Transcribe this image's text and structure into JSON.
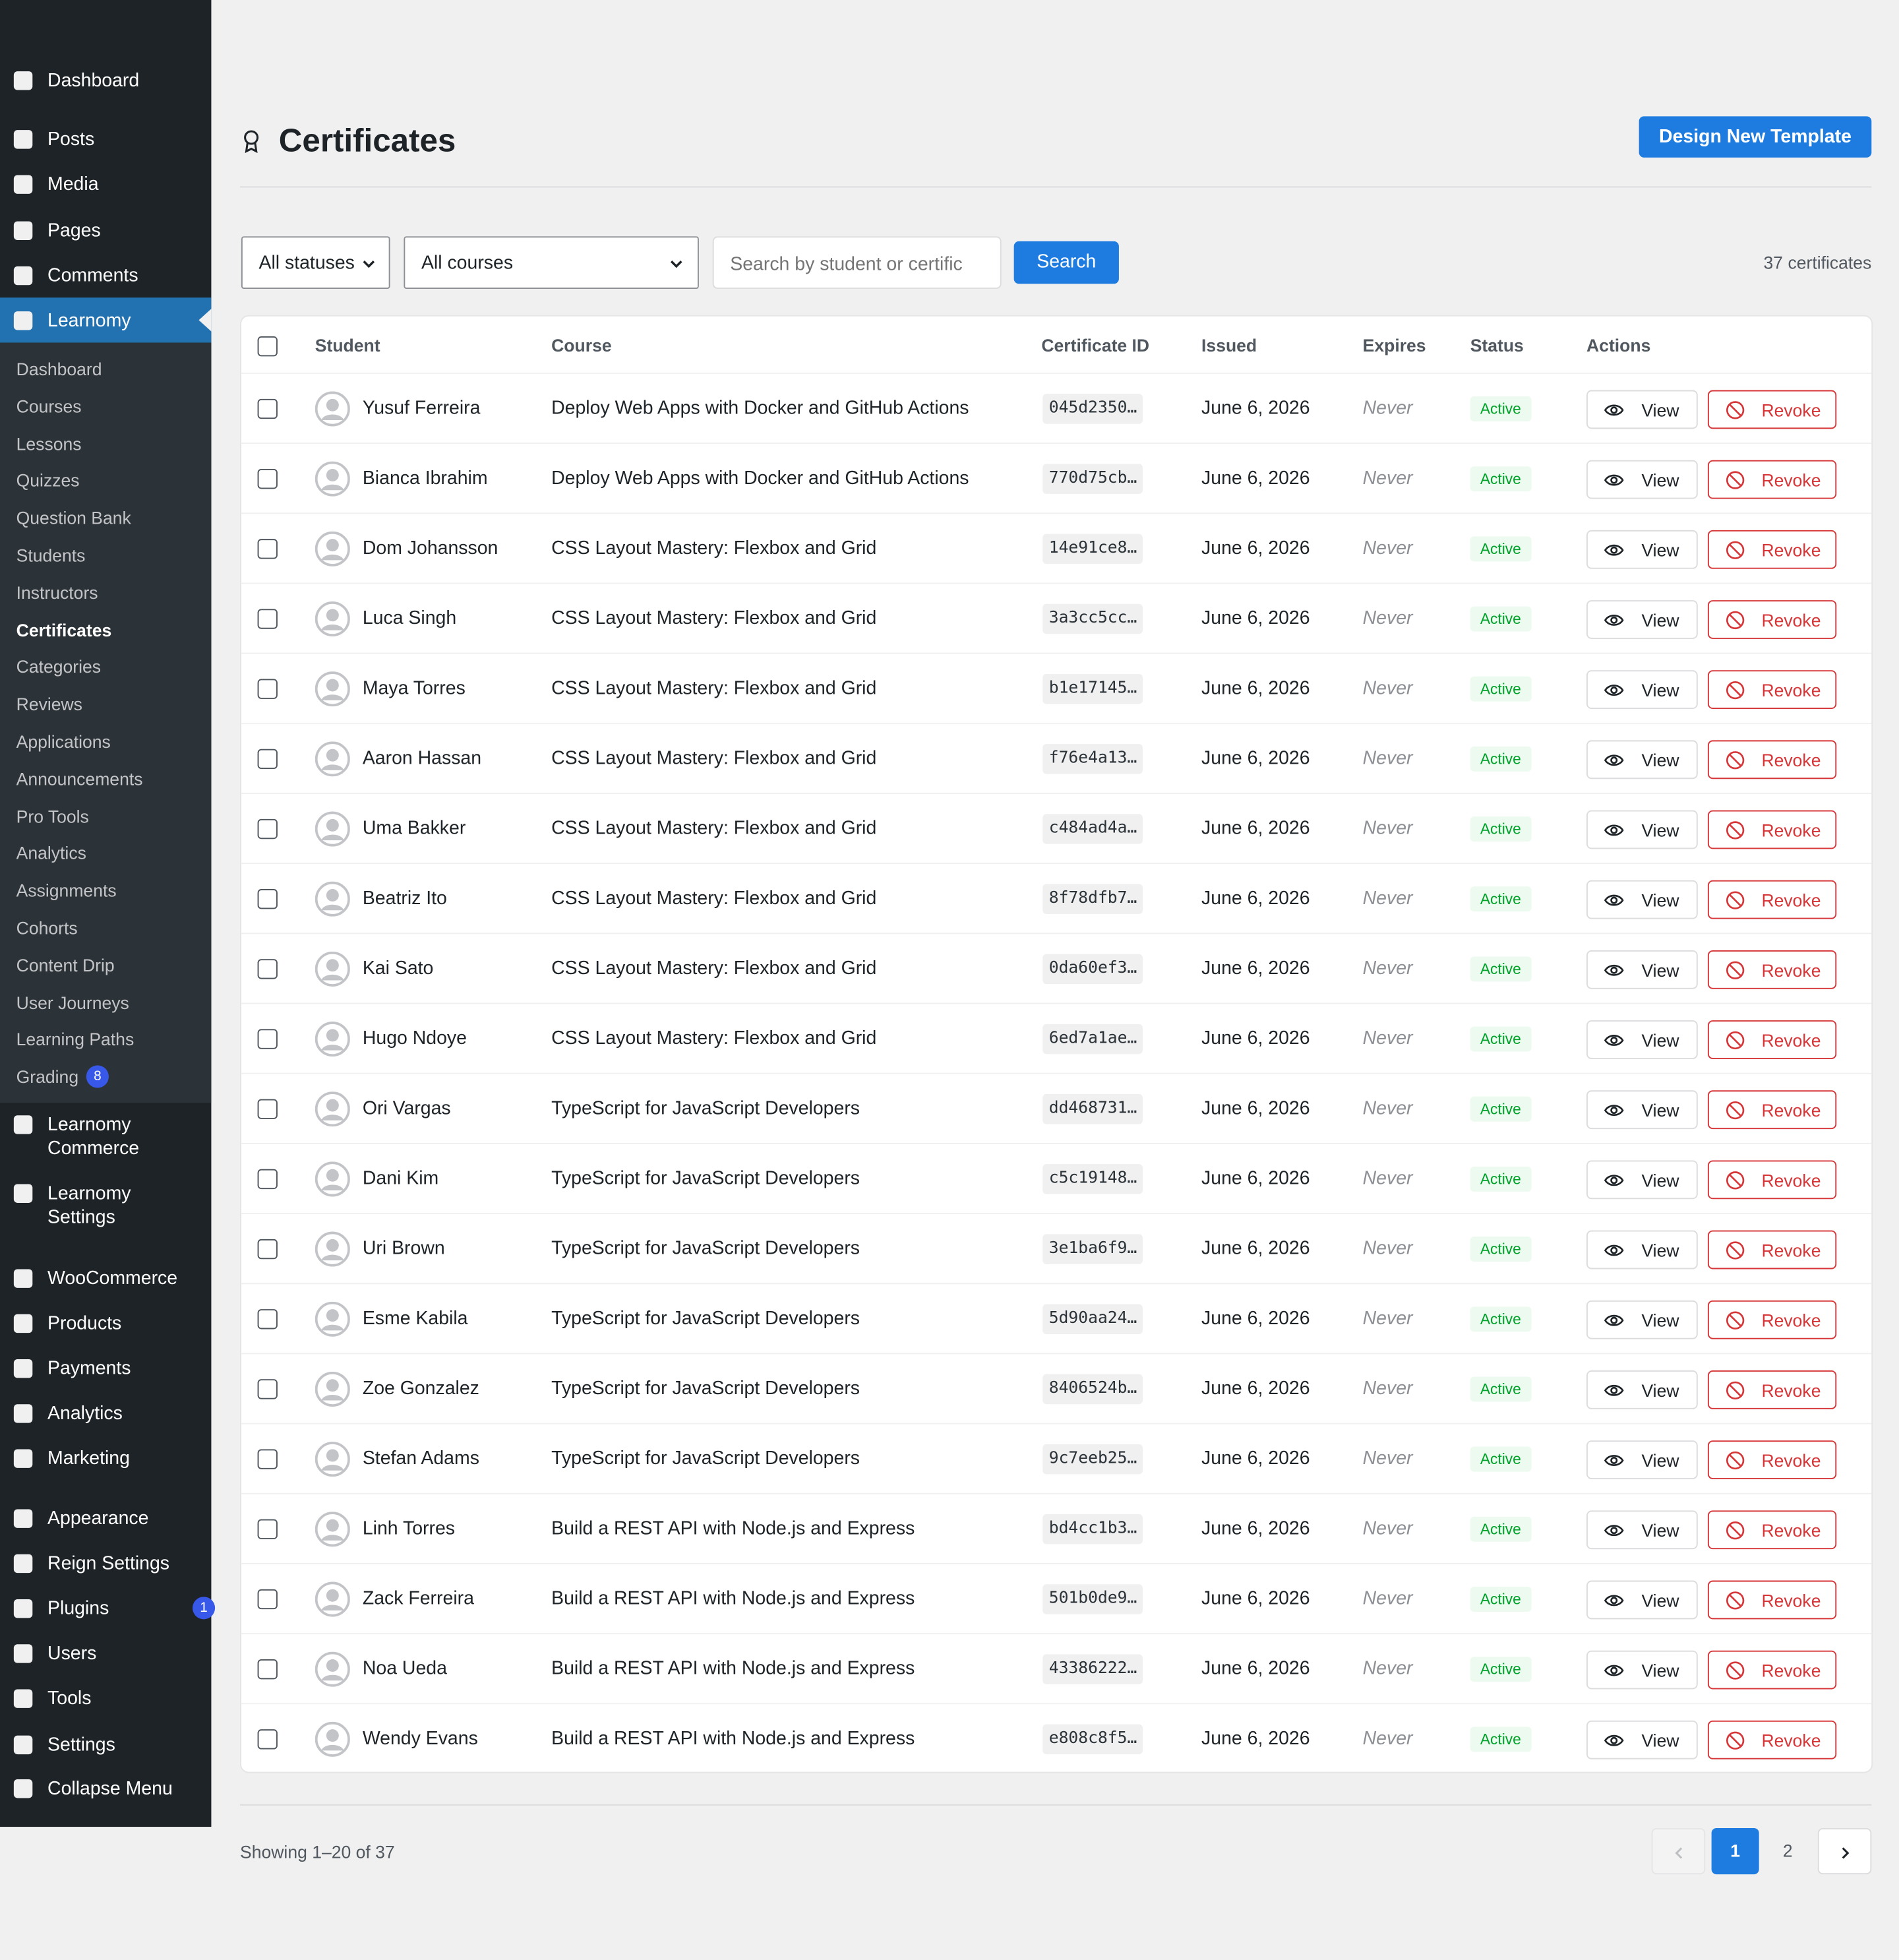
{
  "sidebar": {
    "menu": [
      {
        "label": "Dashboard"
      },
      {
        "label": "Posts"
      },
      {
        "label": "Media"
      },
      {
        "label": "Pages"
      },
      {
        "label": "Comments"
      },
      {
        "label": "Learnomy",
        "active": true
      },
      {
        "label": "Learnomy Commerce"
      },
      {
        "label": "Learnomy Settings"
      },
      {
        "label": "WooCommerce"
      },
      {
        "label": "Products"
      },
      {
        "label": "Payments"
      },
      {
        "label": "Analytics"
      },
      {
        "label": "Marketing"
      },
      {
        "label": "Appearance"
      },
      {
        "label": "Reign Settings"
      },
      {
        "label": "Plugins",
        "badge": 1
      },
      {
        "label": "Users"
      },
      {
        "label": "Tools"
      },
      {
        "label": "Settings"
      },
      {
        "label": "Collapse Menu"
      }
    ],
    "submenu": [
      {
        "label": "Dashboard"
      },
      {
        "label": "Courses"
      },
      {
        "label": "Lessons"
      },
      {
        "label": "Quizzes"
      },
      {
        "label": "Question Bank"
      },
      {
        "label": "Students"
      },
      {
        "label": "Instructors"
      },
      {
        "label": "Certificates",
        "current": true
      },
      {
        "label": "Categories"
      },
      {
        "label": "Reviews"
      },
      {
        "label": "Applications"
      },
      {
        "label": "Announcements"
      },
      {
        "label": "Pro Tools"
      },
      {
        "label": "Analytics"
      },
      {
        "label": "Assignments"
      },
      {
        "label": "Cohorts"
      },
      {
        "label": "Content Drip"
      },
      {
        "label": "User Journeys"
      },
      {
        "label": "Learning Paths"
      },
      {
        "label": "Grading",
        "badge": 8
      }
    ]
  },
  "header": {
    "title": "Certificates",
    "button": "Design New Template"
  },
  "filters": {
    "status": "All statuses",
    "course": "All courses",
    "search_placeholder": "Search by student or certific",
    "search_button": "Search",
    "count": "37 certificates"
  },
  "table": {
    "columns": [
      "Student",
      "Course",
      "Certificate ID",
      "Issued",
      "Expires",
      "Status",
      "Actions"
    ],
    "actions": [
      "View",
      "Revoke"
    ],
    "rows": [
      [
        "Yusuf Ferreira",
        "Deploy Web Apps with Docker and GitHub Actions",
        "045d2350…",
        "June 6, 2026",
        "Never",
        "Active"
      ],
      [
        "Bianca Ibrahim",
        "Deploy Web Apps with Docker and GitHub Actions",
        "770d75cb…",
        "June 6, 2026",
        "Never",
        "Active"
      ],
      [
        "Dom Johansson",
        "CSS Layout Mastery: Flexbox and Grid",
        "14e91ce8…",
        "June 6, 2026",
        "Never",
        "Active"
      ],
      [
        "Luca Singh",
        "CSS Layout Mastery: Flexbox and Grid",
        "3a3cc5cc…",
        "June 6, 2026",
        "Never",
        "Active"
      ],
      [
        "Maya Torres",
        "CSS Layout Mastery: Flexbox and Grid",
        "b1e17145…",
        "June 6, 2026",
        "Never",
        "Active"
      ],
      [
        "Aaron Hassan",
        "CSS Layout Mastery: Flexbox and Grid",
        "f76e4a13…",
        "June 6, 2026",
        "Never",
        "Active"
      ],
      [
        "Uma Bakker",
        "CSS Layout Mastery: Flexbox and Grid",
        "c484ad4a…",
        "June 6, 2026",
        "Never",
        "Active"
      ],
      [
        "Beatriz Ito",
        "CSS Layout Mastery: Flexbox and Grid",
        "8f78dfb7…",
        "June 6, 2026",
        "Never",
        "Active"
      ],
      [
        "Kai Sato",
        "CSS Layout Mastery: Flexbox and Grid",
        "0da60ef3…",
        "June 6, 2026",
        "Never",
        "Active"
      ],
      [
        "Hugo Ndoye",
        "CSS Layout Mastery: Flexbox and Grid",
        "6ed7a1ae…",
        "June 6, 2026",
        "Never",
        "Active"
      ],
      [
        "Ori Vargas",
        "TypeScript for JavaScript Developers",
        "dd468731…",
        "June 6, 2026",
        "Never",
        "Active"
      ],
      [
        "Dani Kim",
        "TypeScript for JavaScript Developers",
        "c5c19148…",
        "June 6, 2026",
        "Never",
        "Active"
      ],
      [
        "Uri Brown",
        "TypeScript for JavaScript Developers",
        "3e1ba6f9…",
        "June 6, 2026",
        "Never",
        "Active"
      ],
      [
        "Esme Kabila",
        "TypeScript for JavaScript Developers",
        "5d90aa24…",
        "June 6, 2026",
        "Never",
        "Active"
      ],
      [
        "Zoe Gonzalez",
        "TypeScript for JavaScript Developers",
        "8406524b…",
        "June 6, 2026",
        "Never",
        "Active"
      ],
      [
        "Stefan Adams",
        "TypeScript for JavaScript Developers",
        "9c7eeb25…",
        "June 6, 2026",
        "Never",
        "Active"
      ],
      [
        "Linh Torres",
        "Build a REST API with Node.js and Express",
        "bd4cc1b3…",
        "June 6, 2026",
        "Never",
        "Active"
      ],
      [
        "Zack Ferreira",
        "Build a REST API with Node.js and Express",
        "501b0de9…",
        "June 6, 2026",
        "Never",
        "Active"
      ],
      [
        "Noa Ueda",
        "Build a REST API with Node.js and Express",
        "43386222…",
        "June 6, 2026",
        "Never",
        "Active"
      ],
      [
        "Wendy Evans",
        "Build a REST API with Node.js and Express",
        "e808c8f5…",
        "June 6, 2026",
        "Never",
        "Active"
      ]
    ]
  },
  "footer": {
    "showing": "Showing 1–20 of 37",
    "pages": [
      1,
      2
    ],
    "current_page": 1
  }
}
